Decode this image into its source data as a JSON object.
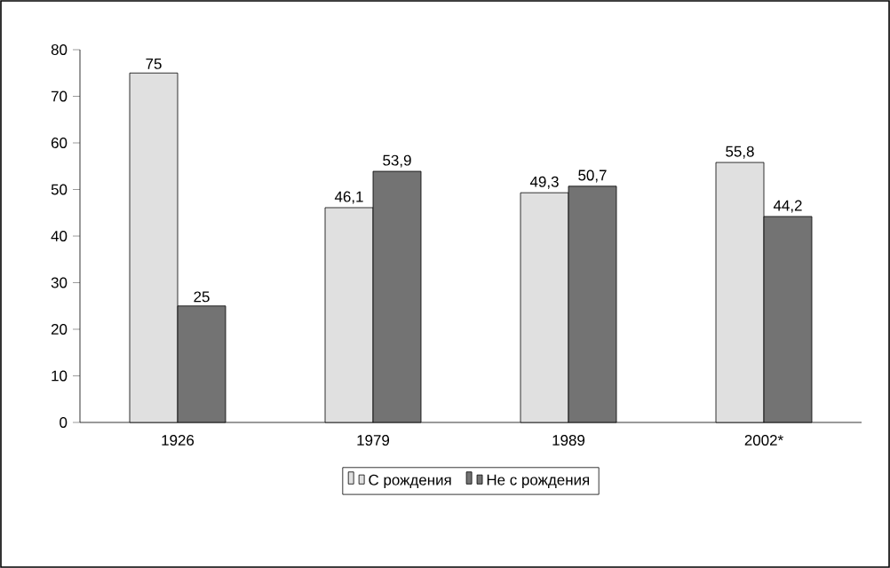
{
  "chart_data": {
    "type": "bar",
    "categories": [
      "1926",
      "1979",
      "1989",
      "2002*"
    ],
    "series": [
      {
        "name": "С рождения",
        "color": "#000000",
        "values": [
          75,
          46.1,
          49.3,
          55.8
        ],
        "value_labels": [
          "75",
          "46,1",
          "49,3",
          "55,8"
        ]
      },
      {
        "name": "Не с рождения",
        "color": "#000000",
        "values": [
          25,
          53.9,
          50.7,
          44.2
        ],
        "value_labels": [
          "25",
          "53,9",
          "50,7",
          "44,2"
        ]
      }
    ],
    "ylim": [
      0,
      80
    ],
    "yticks": [
      0,
      10,
      20,
      30,
      40,
      50,
      60,
      70,
      80
    ],
    "legend": "bottom"
  }
}
